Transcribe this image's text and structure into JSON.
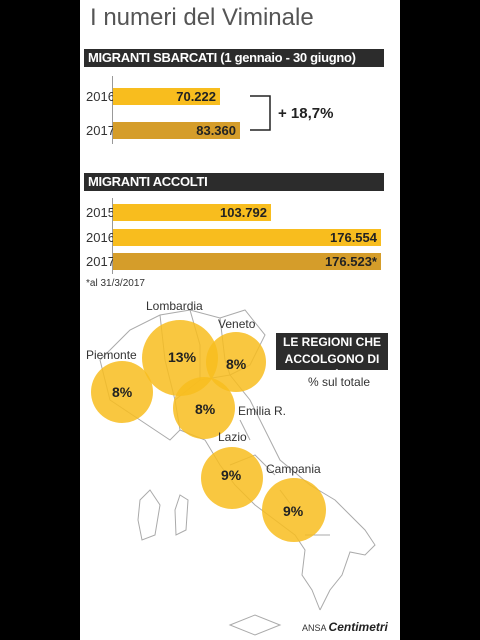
{
  "title": "I numeri del Viminale",
  "chart_data": [
    {
      "type": "bar",
      "title": "MIGRANTI SBARCATI (1 gennaio - 30 giugno)",
      "categories": [
        "2016",
        "2017"
      ],
      "values": [
        70222,
        83360
      ],
      "value_labels": [
        "70.222",
        "83.360"
      ],
      "colors": [
        "#f8bd1e",
        "#d59d2a"
      ],
      "annotation": "+ 18,7%",
      "xlim": [
        0,
        176554
      ]
    },
    {
      "type": "bar",
      "title": "MIGRANTI ACCOLTI",
      "categories": [
        "2015",
        "2016",
        "2017"
      ],
      "values": [
        103792,
        176554,
        176523
      ],
      "value_labels": [
        "103.792",
        "176.554",
        "176.523*"
      ],
      "colors": [
        "#f8bd1e",
        "#f8bd1e",
        "#d59d2a"
      ],
      "note": "*al 31/3/2017",
      "xlim": [
        0,
        176554
      ]
    },
    {
      "type": "map",
      "title": "LE REGIONI CHE ACCOLGONO DI PIÙ",
      "subtitle": "% sul totale",
      "categories": [
        "Lombardia",
        "Piemonte",
        "Veneto",
        "Emilia R.",
        "Lazio",
        "Campania"
      ],
      "values": [
        13,
        8,
        8,
        8,
        9,
        9
      ],
      "value_labels": [
        "13%",
        "8%",
        "8%",
        "8%",
        "9%",
        "9%"
      ],
      "color": "#f8bd1e"
    }
  ],
  "credit": {
    "agency": "ANSA",
    "brand": "Centimetri"
  }
}
